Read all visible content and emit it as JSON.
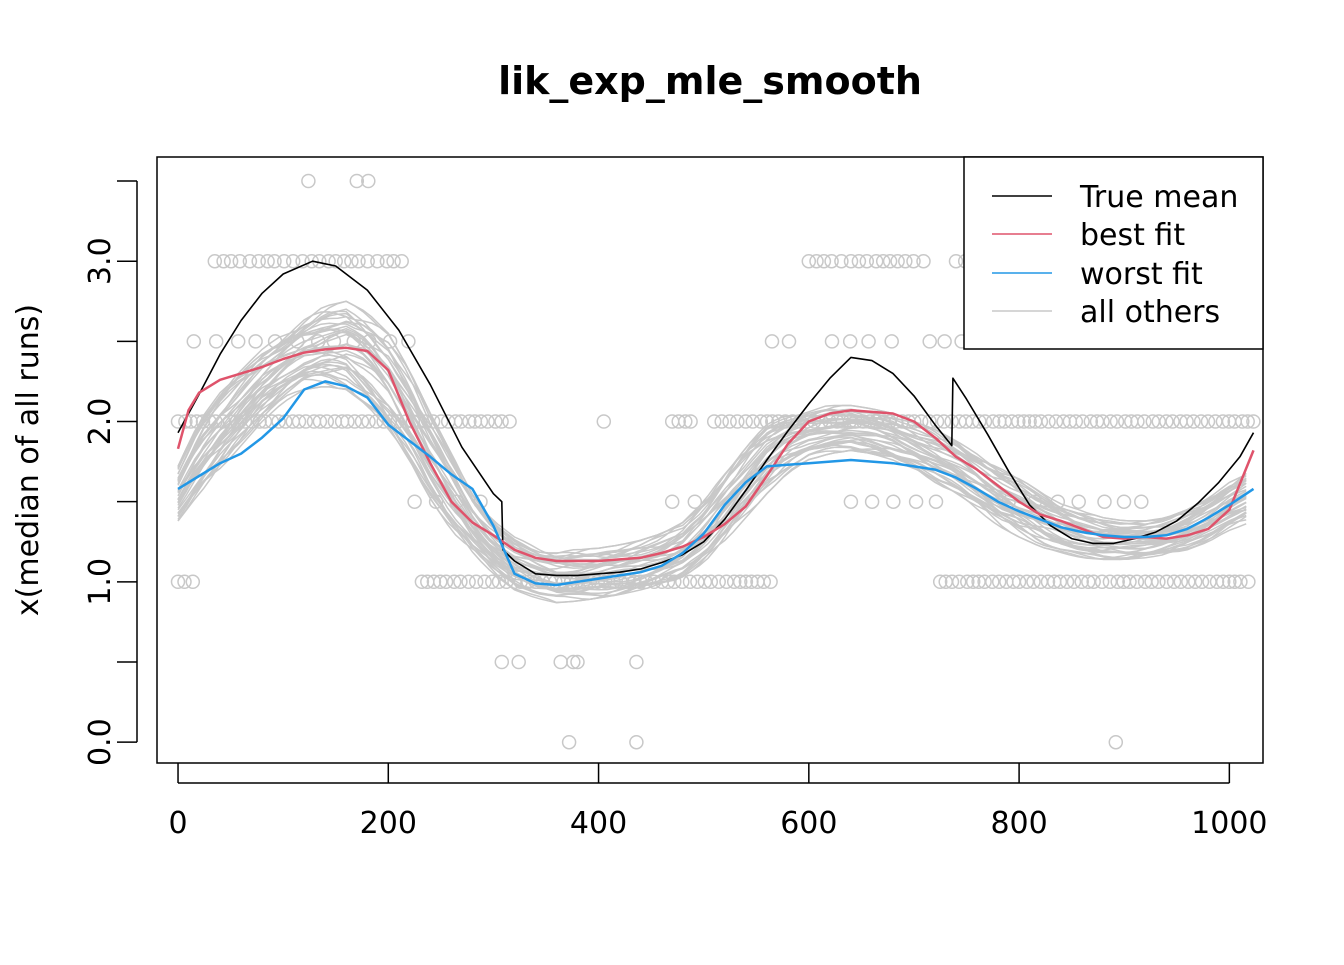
{
  "chart_data": {
    "type": "line",
    "title": "lik_exp_mle_smooth",
    "xlabel": "",
    "ylabel": "x(median of all runs)",
    "xlim": [
      -20,
      1032
    ],
    "ylim": [
      -0.13,
      3.65
    ],
    "x_ticks": [
      0,
      200,
      400,
      600,
      800,
      1000
    ],
    "x_tick_labels": [
      "0",
      "200",
      "400",
      "600",
      "800",
      "1000"
    ],
    "y_ticks": [
      0,
      0.5,
      1,
      1.5,
      2,
      2.5,
      3,
      3.5
    ],
    "y_tick_labels": [
      "0.0",
      "",
      "1.0",
      "",
      "2.0",
      "",
      "3.0",
      ""
    ],
    "grid": false,
    "legend_position": "top-right",
    "colors": {
      "true_mean": "#000000",
      "best_fit": "#DF536B",
      "worst_fit": "#2297E6",
      "all_others": "#C8C8C8",
      "points": "#C8C8C8"
    },
    "legend": [
      {
        "label": "True mean",
        "color": "#000000"
      },
      {
        "label": "best fit",
        "color": "#DF536B"
      },
      {
        "label": "worst fit",
        "color": "#2297E6"
      },
      {
        "label": "all others",
        "color": "#C8C8C8"
      }
    ],
    "series": [
      {
        "name": "True mean",
        "color": "#000000",
        "x": [
          0,
          20,
          40,
          60,
          80,
          100,
          128,
          150,
          180,
          210,
          240,
          270,
          300,
          308,
          309,
          320,
          340,
          360,
          380,
          400,
          420,
          440,
          460,
          480,
          500,
          520,
          540,
          560,
          580,
          600,
          620,
          640,
          660,
          680,
          700,
          720,
          736,
          737,
          750,
          770,
          790,
          810,
          830,
          850,
          870,
          890,
          910,
          930,
          950,
          970,
          990,
          1010,
          1023
        ],
        "y": [
          1.93,
          2.17,
          2.42,
          2.63,
          2.8,
          2.92,
          3.0,
          2.97,
          2.82,
          2.57,
          2.23,
          1.84,
          1.55,
          1.5,
          1.2,
          1.13,
          1.05,
          1.04,
          1.04,
          1.05,
          1.06,
          1.08,
          1.12,
          1.17,
          1.25,
          1.39,
          1.57,
          1.76,
          1.94,
          2.11,
          2.27,
          2.4,
          2.38,
          2.3,
          2.16,
          1.98,
          1.85,
          2.27,
          2.14,
          1.92,
          1.69,
          1.48,
          1.35,
          1.27,
          1.24,
          1.24,
          1.27,
          1.31,
          1.38,
          1.49,
          1.62,
          1.78,
          1.93
        ]
      },
      {
        "name": "best fit",
        "color": "#DF536B",
        "x": [
          0,
          10,
          20,
          40,
          60,
          80,
          100,
          120,
          140,
          160,
          180,
          200,
          220,
          240,
          260,
          280,
          300,
          320,
          340,
          360,
          380,
          400,
          420,
          440,
          460,
          480,
          500,
          520,
          540,
          560,
          580,
          600,
          620,
          640,
          660,
          680,
          700,
          720,
          740,
          760,
          780,
          800,
          820,
          840,
          860,
          880,
          900,
          920,
          940,
          960,
          980,
          1000,
          1023
        ],
        "y": [
          1.83,
          2.07,
          2.18,
          2.26,
          2.3,
          2.34,
          2.39,
          2.43,
          2.45,
          2.46,
          2.44,
          2.32,
          2.0,
          1.74,
          1.5,
          1.37,
          1.29,
          1.2,
          1.15,
          1.13,
          1.13,
          1.13,
          1.14,
          1.15,
          1.18,
          1.22,
          1.28,
          1.36,
          1.47,
          1.66,
          1.86,
          2.0,
          2.05,
          2.07,
          2.06,
          2.05,
          2.0,
          1.9,
          1.78,
          1.7,
          1.6,
          1.5,
          1.42,
          1.38,
          1.33,
          1.28,
          1.27,
          1.28,
          1.27,
          1.29,
          1.33,
          1.45,
          1.82
        ]
      },
      {
        "name": "worst fit",
        "color": "#2297E6",
        "x": [
          0,
          20,
          40,
          60,
          80,
          100,
          120,
          140,
          160,
          180,
          200,
          220,
          240,
          260,
          280,
          300,
          320,
          340,
          360,
          380,
          400,
          420,
          440,
          460,
          480,
          500,
          520,
          540,
          560,
          580,
          600,
          620,
          640,
          660,
          680,
          700,
          720,
          740,
          760,
          780,
          800,
          820,
          840,
          860,
          880,
          900,
          920,
          940,
          960,
          980,
          1000,
          1023
        ],
        "y": [
          1.58,
          1.66,
          1.74,
          1.8,
          1.9,
          2.02,
          2.2,
          2.25,
          2.22,
          2.15,
          1.98,
          1.88,
          1.78,
          1.67,
          1.58,
          1.35,
          1.05,
          0.99,
          0.98,
          1.0,
          1.02,
          1.04,
          1.06,
          1.1,
          1.18,
          1.3,
          1.48,
          1.62,
          1.72,
          1.73,
          1.74,
          1.75,
          1.76,
          1.75,
          1.74,
          1.72,
          1.7,
          1.65,
          1.58,
          1.5,
          1.44,
          1.39,
          1.34,
          1.31,
          1.29,
          1.28,
          1.28,
          1.29,
          1.33,
          1.4,
          1.48,
          1.58
        ]
      }
    ],
    "others_band": {
      "label": "all others",
      "count": 40,
      "color": "#C8C8C8",
      "x": [
        0,
        20,
        40,
        60,
        80,
        100,
        120,
        140,
        160,
        180,
        200,
        220,
        240,
        260,
        280,
        300,
        320,
        340,
        360,
        380,
        400,
        420,
        440,
        460,
        480,
        500,
        520,
        540,
        560,
        580,
        600,
        620,
        640,
        660,
        680,
        700,
        720,
        740,
        760,
        780,
        800,
        820,
        840,
        860,
        880,
        900,
        920,
        940,
        960,
        980,
        1000,
        1023
      ],
      "low": [
        1.38,
        1.55,
        1.7,
        1.85,
        2.0,
        2.12,
        2.2,
        2.22,
        2.2,
        2.1,
        1.95,
        1.75,
        1.52,
        1.32,
        1.18,
        1.05,
        0.95,
        0.9,
        0.87,
        0.88,
        0.9,
        0.92,
        0.95,
        0.98,
        1.03,
        1.12,
        1.25,
        1.4,
        1.55,
        1.68,
        1.76,
        1.8,
        1.82,
        1.8,
        1.76,
        1.7,
        1.62,
        1.55,
        1.45,
        1.35,
        1.28,
        1.22,
        1.18,
        1.15,
        1.14,
        1.14,
        1.15,
        1.17,
        1.2,
        1.25,
        1.32,
        1.38
      ],
      "high": [
        1.72,
        2.0,
        2.18,
        2.32,
        2.45,
        2.55,
        2.65,
        2.72,
        2.75,
        2.68,
        2.55,
        2.32,
        2.05,
        1.8,
        1.55,
        1.38,
        1.28,
        1.22,
        1.2,
        1.2,
        1.21,
        1.23,
        1.26,
        1.3,
        1.37,
        1.5,
        1.68,
        1.85,
        1.98,
        2.05,
        2.08,
        2.1,
        2.1,
        2.08,
        2.05,
        2.0,
        1.95,
        1.88,
        1.8,
        1.72,
        1.65,
        1.57,
        1.5,
        1.44,
        1.4,
        1.38,
        1.38,
        1.4,
        1.45,
        1.52,
        1.62,
        1.72
      ]
    },
    "points": {
      "color": "#C8C8C8",
      "y3_5_x": [
        124,
        170,
        181
      ],
      "y3_0_ranges": [
        [
          35,
          215
        ],
        [
          600,
          712
        ],
        [
          740,
          760
        ]
      ],
      "y2_5_ranges": [
        [
          15,
          235
        ],
        [
          565,
          595
        ],
        [
          622,
          690
        ],
        [
          715,
          755
        ]
      ],
      "y2_0_ranges": [
        [
          0,
          318
        ],
        [
          405,
          405
        ],
        [
          470,
          492
        ],
        [
          510,
          1023
        ]
      ],
      "y1_5_ranges": [
        [
          225,
          300
        ],
        [
          470,
          510
        ],
        [
          640,
          740
        ],
        [
          790,
          930
        ]
      ],
      "y1_0_ranges": [
        [
          0,
          15
        ],
        [
          232,
          570
        ],
        [
          725,
          1023
        ]
      ],
      "y0_5_x": [
        308,
        324,
        364,
        376,
        380,
        436
      ],
      "y0_0_x": [
        372,
        436,
        892
      ]
    }
  }
}
